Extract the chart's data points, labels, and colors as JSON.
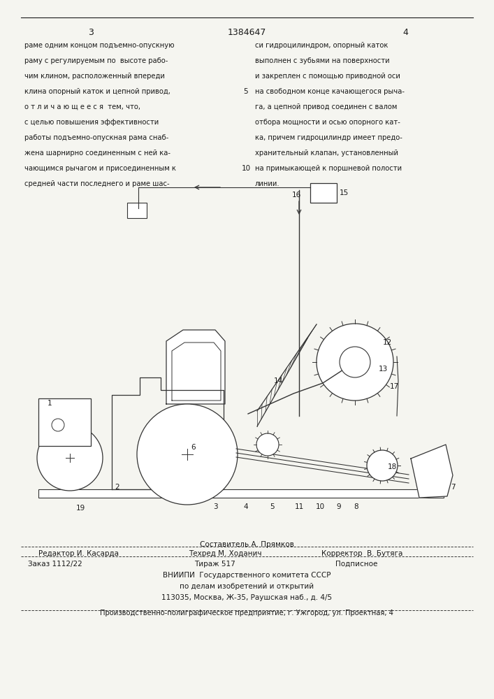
{
  "page_number_left": "3",
  "patent_number": "1384647",
  "page_number_right": "4",
  "col1_text": [
    "раме одним концом подъемно-опускную",
    "раму с регулируемым по  высоте рабо-",
    "чим клином, расположенный впереди",
    "клина опорный каток и цепной привод,",
    "о т л и ч а ю щ е е с я  тем, что,",
    "с целью повышения эффективности",
    "работы подъемно-опускная рама снаб-",
    "жена шарнирно соединенным с ней ка-",
    "чающимся рычагом и присоединенным к",
    "средней части последнего и раме шас-"
  ],
  "col2_text": [
    "си гидроцилиндром, опорный каток",
    "выполнен с зубьями на поверхности",
    "и закреплен с помощью приводной оси",
    "на свободном конце качающегося рыча-",
    "га, а цепной привод соединен с валом",
    "отбора мощности и осью опорного кат-",
    "ка, причем гидроцилиндр имеет предо-",
    "хранительный клапан, установленный",
    "на примыкающей к поршневой полости",
    "линии."
  ],
  "footer_line1": "Составитель А. Прямков",
  "footer_line2_left": "Редактор И. Касарда",
  "footer_line2_mid": "Техред М. Ходанич",
  "footer_line2_right": "Корректор  В. Бутяга",
  "footer_line3_left": "Заказ 1112/22",
  "footer_line3_mid": "Тираж 517",
  "footer_line3_right": "Подписное",
  "footer_line4": "ВНИИПИ  Государственного комитета СССР",
  "footer_line5": "по делам изобретений и открытий",
  "footer_line6": "113035, Москва, Ж-35, Раушская наб., д. 4/5",
  "footer_line7": "Производственно-полиграфическое предприятие, г. Ужгород, ул. Проектная, 4",
  "bg_color": "#f5f5f0",
  "text_color": "#1a1a1a",
  "diagram_color": "#333333"
}
